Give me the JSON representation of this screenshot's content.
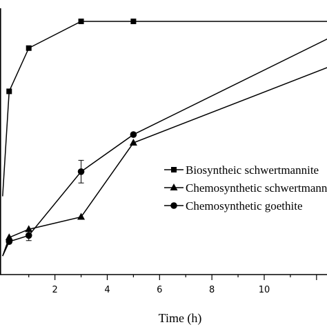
{
  "chart_data": {
    "type": "line",
    "xlabel": "Time (h)",
    "ylabel": "",
    "xlim": [
      -0.1,
      12.4
    ],
    "ylim": [
      -0.3,
      12.3
    ],
    "xticks": [
      2,
      4,
      6,
      8,
      10
    ],
    "x_tick_labels": [
      "2",
      "4",
      "6",
      "8",
      "10"
    ],
    "grid": false,
    "legend_position": "center-right",
    "series": [
      {
        "name": "Biosyntheic schwertmannite",
        "marker": "square",
        "x": [
          0,
          0.25,
          1,
          3,
          5,
          12.5
        ],
        "y": [
          3.5,
          8.6,
          10.7,
          12.0,
          12.0,
          12.0
        ]
      },
      {
        "name": "Chemosynthetic schwertmannite",
        "marker": "triangle",
        "x": [
          0,
          0.25,
          1,
          3,
          5,
          12.5
        ],
        "y": [
          0.6,
          1.5,
          1.9,
          2.5,
          6.1,
          9.8
        ]
      },
      {
        "name": "Chemosynthetic goethite",
        "marker": "circle",
        "x": [
          0,
          0.25,
          1,
          3,
          5,
          12.5
        ],
        "y": [
          0.6,
          1.3,
          1.6,
          4.7,
          6.5,
          11.2
        ],
        "error": [
          0,
          0,
          0.25,
          0.55,
          0,
          0
        ]
      }
    ]
  }
}
